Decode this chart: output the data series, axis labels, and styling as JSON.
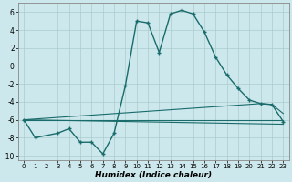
{
  "xlabel": "Humidex (Indice chaleur)",
  "background_color": "#cce8ec",
  "grid_color": "#aacccc",
  "line_color": "#1a6b6b",
  "xlim": [
    -0.5,
    23.5
  ],
  "ylim": [
    -10.5,
    7
  ],
  "xticks": [
    0,
    1,
    2,
    3,
    4,
    5,
    6,
    7,
    8,
    9,
    10,
    11,
    12,
    13,
    14,
    15,
    16,
    17,
    18,
    19,
    20,
    21,
    22,
    23
  ],
  "yticks": [
    -10,
    -8,
    -6,
    -4,
    -2,
    0,
    2,
    4,
    6
  ],
  "series_main": {
    "x": [
      0,
      1,
      3,
      4,
      5,
      6,
      7,
      8,
      9,
      10,
      11,
      12,
      13,
      14,
      15,
      16,
      17,
      18,
      19,
      20,
      21,
      22,
      23
    ],
    "y": [
      -6,
      -8,
      -7.5,
      -7,
      -8.5,
      -8.5,
      -9.8,
      -7.5,
      -2.2,
      5,
      4.8,
      1.5,
      5.8,
      6.2,
      5.8,
      3.8,
      1,
      -1,
      -2.5,
      -3.8,
      -4.2,
      -4.3,
      -6.2
    ]
  },
  "series_lines": [
    {
      "x": [
        0,
        21,
        22,
        23
      ],
      "y": [
        -6,
        -4.2,
        -4.3,
        -5.3
      ]
    },
    {
      "x": [
        0,
        23
      ],
      "y": [
        -6,
        -6.0
      ]
    },
    {
      "x": [
        0,
        23
      ],
      "y": [
        -6,
        -6.5
      ]
    }
  ]
}
